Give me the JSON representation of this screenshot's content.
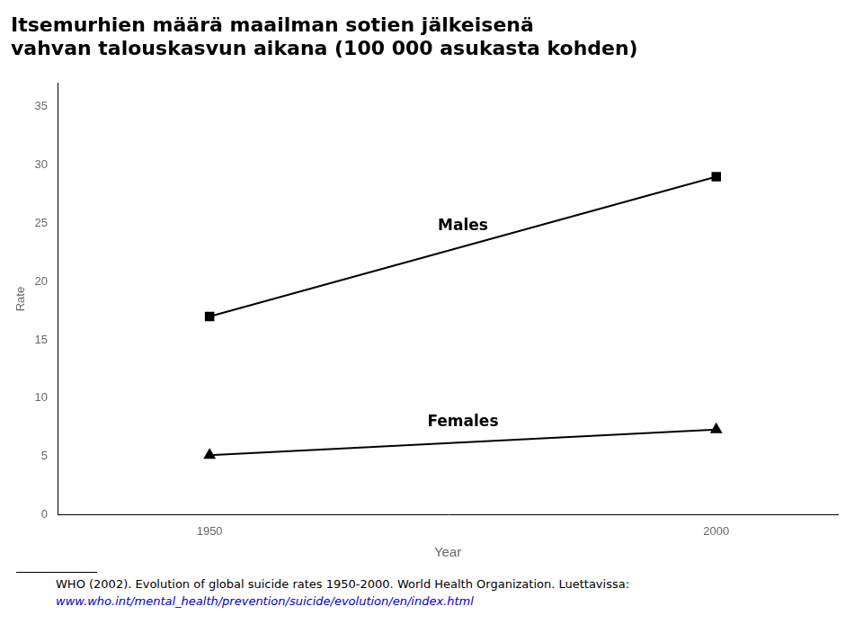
{
  "chart_data": {
    "type": "line",
    "title": [
      "Itsemurhien määrä maailman sotien jälkeisenä",
      "vahvan talouskasvun aikana (100 000 asukasta kohden)"
    ],
    "x_label": "Year",
    "y_label": "Rate",
    "x": [
      1950,
      2000
    ],
    "series": [
      {
        "name": "Males",
        "color": "#000000",
        "marker": "square",
        "values": [
          17.0,
          29.0
        ]
      },
      {
        "name": "Females",
        "color": "#000000",
        "marker": "triangle",
        "values": [
          5.1,
          7.3
        ]
      }
    ],
    "xlim": [
      1935,
      2012
    ],
    "xticks": [
      1950,
      2000
    ],
    "ylim": [
      0,
      37
    ],
    "yticks": [
      0,
      5,
      10,
      15,
      20,
      25,
      30,
      35
    ],
    "grid": false,
    "footnote": [
      "WHO (2002). Evolution of global suicide rates 1950-2000. World Health Organization. Luettavissa:",
      "www.who.int/mental_health/prevention/suicide/evolution/en/index.html"
    ]
  }
}
